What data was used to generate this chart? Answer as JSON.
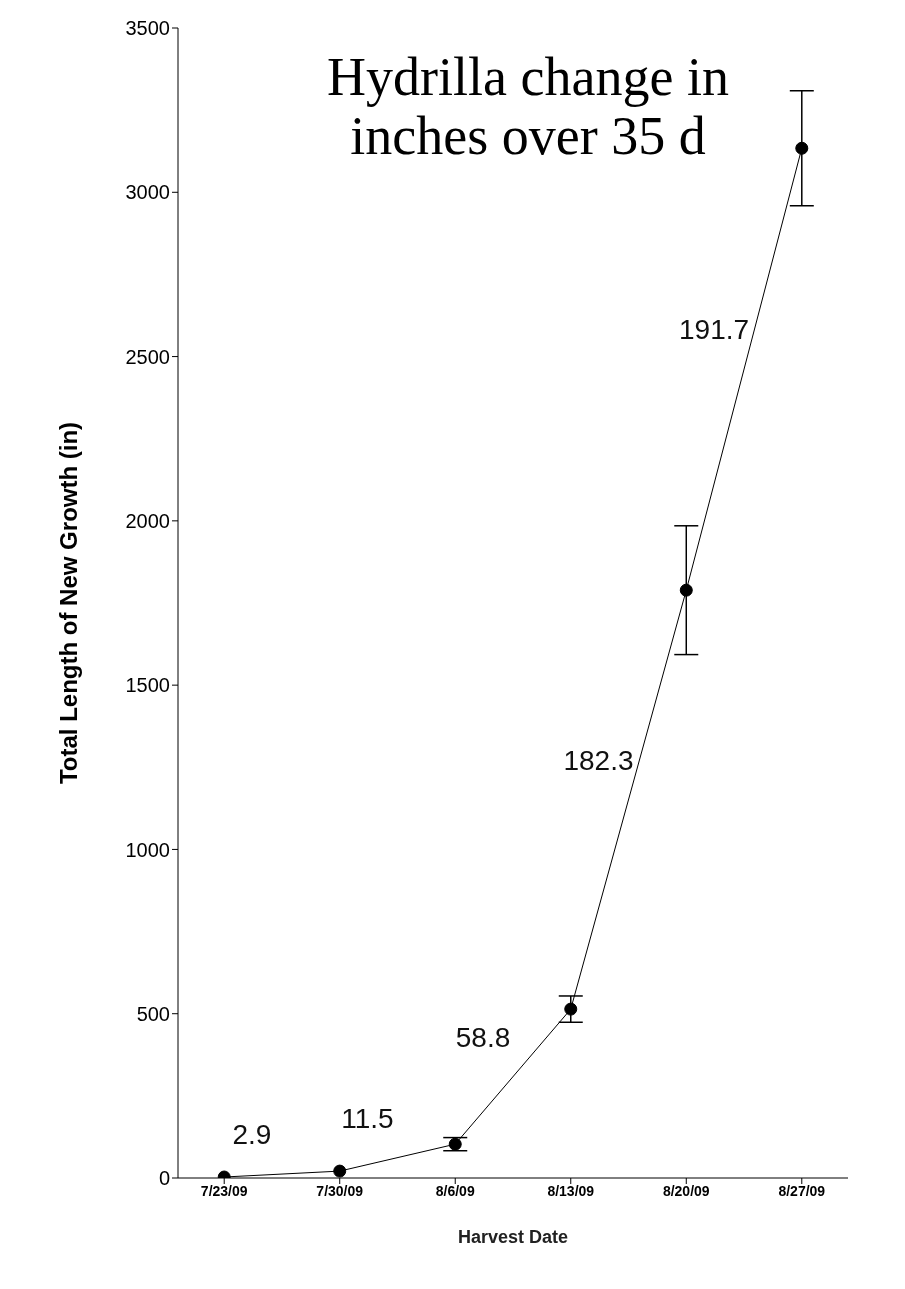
{
  "chart_data": {
    "type": "line",
    "title": "Hydrilla change in inches over 35 d",
    "xlabel": "Harvest Date",
    "ylabel": "Total Length of New Growth (in)",
    "categories": [
      "7/23/09",
      "7/30/09",
      "8/6/09",
      "8/13/09",
      "8/20/09",
      "8/27/09"
    ],
    "values": [
      3,
      21,
      103,
      514,
      1789,
      3134
    ],
    "errors": [
      null,
      null,
      20,
      40,
      196,
      175
    ],
    "color": "#000000",
    "marker": "circle",
    "line_style": "solid",
    "grid": false,
    "legend": false,
    "ylim": [
      0,
      3500
    ],
    "yticks": [
      0,
      500,
      1000,
      1500,
      2000,
      2500,
      3000,
      3500
    ],
    "annotations": [
      "2.9",
      "11.5",
      "58.8",
      "182.3",
      "191.7"
    ]
  }
}
